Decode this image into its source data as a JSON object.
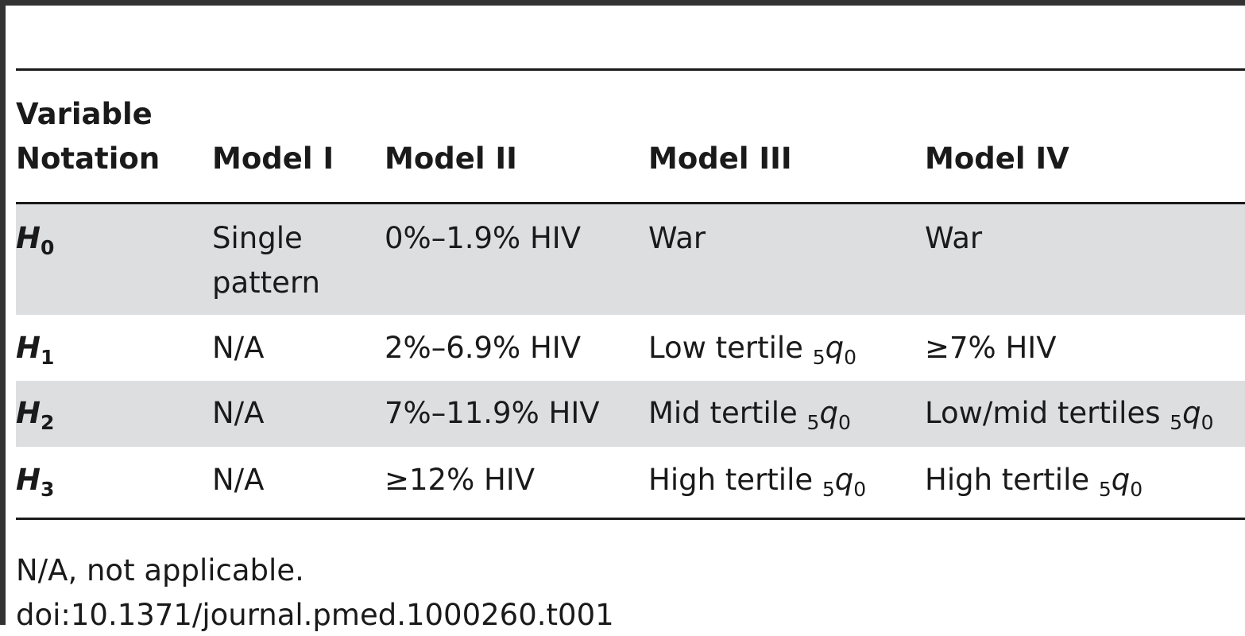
{
  "table": {
    "header": {
      "variable_line1": "Variable",
      "variable_line2": "Notation",
      "model_1": "Model I",
      "model_2": "Model II",
      "model_3": "Model III",
      "model_4": "Model IV"
    },
    "rows": [
      {
        "var_letter": "H",
        "var_sub": "0",
        "model_1_line1": "Single",
        "model_1_line2": "pattern",
        "model_2": "0%–1.9% HIV",
        "model_3": "War",
        "model_4": "War"
      },
      {
        "var_letter": "H",
        "var_sub": "1",
        "model_1": "N/A",
        "model_2": "2%–6.9% HIV",
        "model_3_text": "Low tertile ",
        "model_3_pre": "5",
        "model_3_sym": "q",
        "model_3_post": "0",
        "model_4": "≥7% HIV"
      },
      {
        "var_letter": "H",
        "var_sub": "2",
        "model_1": "N/A",
        "model_2": "7%–11.9% HIV",
        "model_3_text": "Mid tertile ",
        "model_3_pre": "5",
        "model_3_sym": "q",
        "model_3_post": "0",
        "model_4_text": "Low/mid tertiles ",
        "model_4_pre": "5",
        "model_4_sym": "q",
        "model_4_post": "0"
      },
      {
        "var_letter": "H",
        "var_sub": "3",
        "model_1": "N/A",
        "model_2": "≥12% HIV",
        "model_3_text": "High tertile ",
        "model_3_pre": "5",
        "model_3_sym": "q",
        "model_3_post": "0",
        "model_4_text": "High tertile ",
        "model_4_pre": "5",
        "model_4_sym": "q",
        "model_4_post": "0"
      }
    ]
  },
  "footnote": "N/A, not applicable.",
  "doi": "doi:10.1371/journal.pmed.1000260.t001",
  "colors": {
    "shaded_row": "#dddee0",
    "rule": "#1a1a1a",
    "frame": "#333333"
  }
}
